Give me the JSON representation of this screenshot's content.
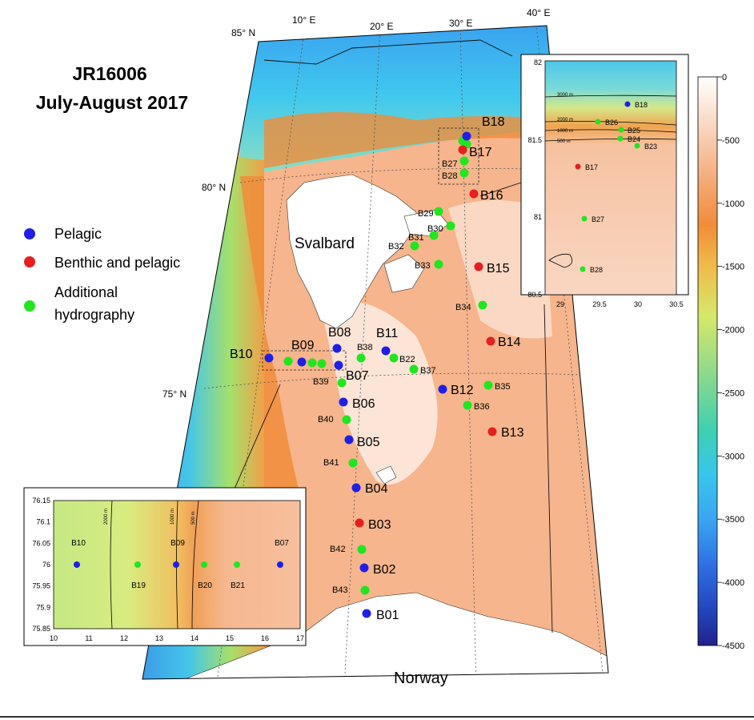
{
  "title": {
    "line1": "JR16006",
    "line2": "July-August 2017"
  },
  "legend": {
    "items": [
      {
        "label": "Pelagic",
        "color": "#1f1fe6"
      },
      {
        "label": "Benthic and pelagic",
        "color": "#e61f1f"
      },
      {
        "label": "Additional",
        "color": "#1fe61f"
      },
      {
        "label": "hydrography",
        "color": "#1fe61f"
      }
    ]
  },
  "colors": {
    "pelagic": "#1f1fe6",
    "benthic": "#e61f1f",
    "hydro": "#1fe61f"
  },
  "map": {
    "lat_labels": [
      "85° N",
      "80° N",
      "75° N"
    ],
    "lon_labels": [
      "10° E",
      "20° E",
      "30° E",
      "40° E"
    ],
    "places": [
      "Svalbard",
      "Norway"
    ],
    "stations": [
      {
        "name": "B18",
        "type": "pelagic"
      },
      {
        "name": "B17",
        "type": "benthic"
      },
      {
        "name": "B27",
        "type": "hydro"
      },
      {
        "name": "B28",
        "type": "hydro"
      },
      {
        "name": "B16",
        "type": "benthic"
      },
      {
        "name": "B29",
        "type": "hydro"
      },
      {
        "name": "B30",
        "type": "hydro"
      },
      {
        "name": "B31",
        "type": "hydro"
      },
      {
        "name": "B32",
        "type": "hydro"
      },
      {
        "name": "B33",
        "type": "hydro"
      },
      {
        "name": "B15",
        "type": "benthic"
      },
      {
        "name": "B34",
        "type": "hydro"
      },
      {
        "name": "B14",
        "type": "benthic"
      },
      {
        "name": "B11",
        "type": "pelagic"
      },
      {
        "name": "B08",
        "type": "pelagic"
      },
      {
        "name": "B09",
        "type": "pelagic"
      },
      {
        "name": "B10",
        "type": "pelagic"
      },
      {
        "name": "B38",
        "type": "hydro"
      },
      {
        "name": "B22",
        "type": "hydro"
      },
      {
        "name": "B37",
        "type": "hydro"
      },
      {
        "name": "B07",
        "type": "pelagic"
      },
      {
        "name": "B39",
        "type": "hydro"
      },
      {
        "name": "B12",
        "type": "pelagic"
      },
      {
        "name": "B35",
        "type": "hydro"
      },
      {
        "name": "B06",
        "type": "pelagic"
      },
      {
        "name": "B36",
        "type": "hydro"
      },
      {
        "name": "B40",
        "type": "hydro"
      },
      {
        "name": "B13",
        "type": "benthic"
      },
      {
        "name": "B05",
        "type": "pelagic"
      },
      {
        "name": "B41",
        "type": "hydro"
      },
      {
        "name": "B04",
        "type": "pelagic"
      },
      {
        "name": "B03",
        "type": "benthic"
      },
      {
        "name": "B42",
        "type": "hydro"
      },
      {
        "name": "B02",
        "type": "pelagic"
      },
      {
        "name": "B43",
        "type": "hydro"
      },
      {
        "name": "B01",
        "type": "pelagic"
      }
    ]
  },
  "colorbar": {
    "ticks": [
      "0",
      "-500",
      "-1000",
      "-1500",
      "-2000",
      "-2500",
      "-3000",
      "-3500",
      "-4000",
      "-4500"
    ]
  },
  "inset_ne": {
    "y_ticks": [
      "82",
      "81.5",
      "81",
      "80.5"
    ],
    "x_ticks": [
      "29",
      "29.5",
      "30",
      "30.5"
    ],
    "contours": [
      "3000 m",
      "2000 m",
      "1000 m",
      "500 m"
    ],
    "stations": [
      {
        "name": "B18",
        "type": "pelagic"
      },
      {
        "name": "B26",
        "type": "hydro"
      },
      {
        "name": "B25",
        "type": "hydro"
      },
      {
        "name": "B24",
        "type": "hydro"
      },
      {
        "name": "B23",
        "type": "hydro"
      },
      {
        "name": "B17",
        "type": "benthic"
      },
      {
        "name": "B27",
        "type": "hydro"
      },
      {
        "name": "B28",
        "type": "hydro"
      }
    ]
  },
  "inset_sw": {
    "y_ticks": [
      "76.15",
      "76.1",
      "76.05",
      "76",
      "75.95",
      "75.9",
      "75.85"
    ],
    "x_ticks": [
      "10",
      "11",
      "12",
      "13",
      "14",
      "15",
      "16",
      "17"
    ],
    "contours": [
      "2000 m",
      "1000 m",
      "500 m"
    ],
    "stations": [
      {
        "name": "B10",
        "type": "pelagic"
      },
      {
        "name": "B19",
        "type": "hydro"
      },
      {
        "name": "B09",
        "type": "pelagic"
      },
      {
        "name": "B20",
        "type": "hydro"
      },
      {
        "name": "B21",
        "type": "hydro"
      },
      {
        "name": "B07",
        "type": "pelagic"
      }
    ]
  }
}
